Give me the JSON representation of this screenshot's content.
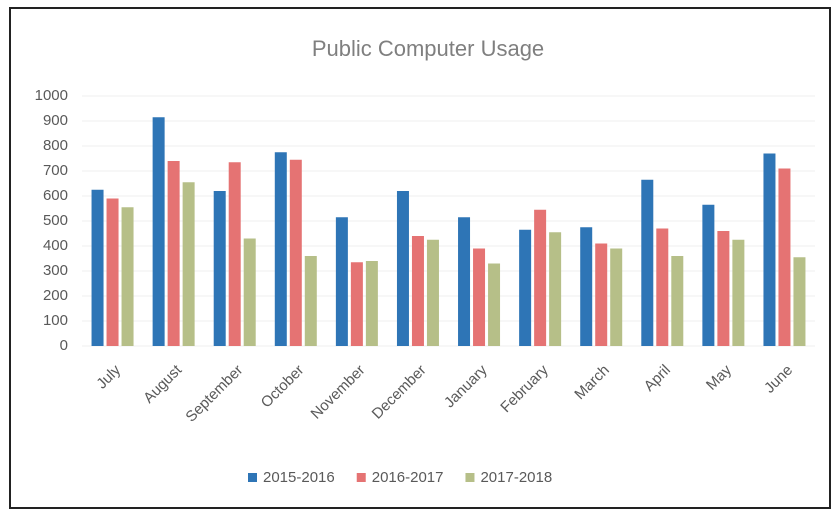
{
  "chart_data": {
    "type": "bar",
    "title": "Public Computer Usage",
    "categories": [
      "July",
      "August",
      "September",
      "October",
      "November",
      "December",
      "January",
      "February",
      "March",
      "April",
      "May",
      "June"
    ],
    "series": [
      {
        "name": "2015-2016",
        "color": "#2e75b6",
        "values": [
          625,
          915,
          620,
          775,
          515,
          620,
          515,
          465,
          475,
          665,
          565,
          770
        ]
      },
      {
        "name": "2016-2017",
        "color": "#e57373",
        "values": [
          590,
          740,
          735,
          745,
          335,
          440,
          390,
          545,
          410,
          470,
          460,
          710
        ]
      },
      {
        "name": "2017-2018",
        "color": "#b6bf88",
        "values": [
          555,
          655,
          430,
          360,
          340,
          425,
          330,
          455,
          390,
          360,
          425,
          355
        ]
      }
    ],
    "ylim": [
      0,
      1000
    ],
    "yticks": [
      0,
      100,
      200,
      300,
      400,
      500,
      600,
      700,
      800,
      900,
      1000
    ],
    "grid": true,
    "legend": "bottom"
  }
}
